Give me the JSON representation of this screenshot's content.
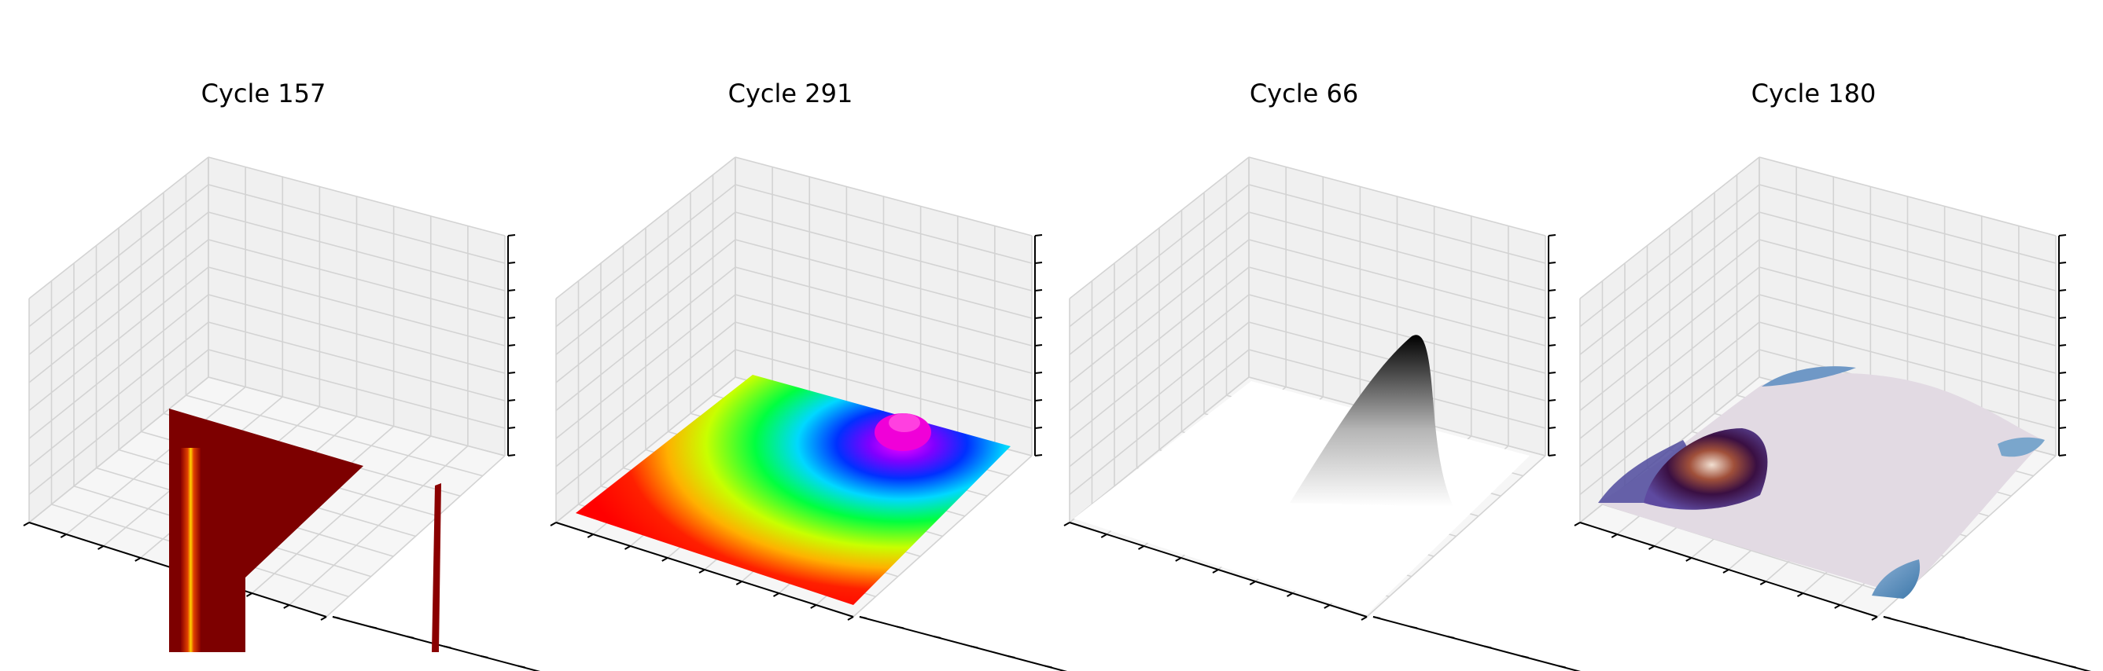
{
  "chart_data": [
    {
      "type": "surface3d",
      "title": "Cycle 157",
      "colormap": "hot",
      "colors": [
        "#7a0000",
        "#b81000",
        "#ff6a00",
        "#ffd200"
      ],
      "grid": true,
      "tick_labels": false
    },
    {
      "type": "surface3d",
      "title": "Cycle 291",
      "colormap": "hsv",
      "colors": [
        "#ff0000",
        "#ffff00",
        "#00ff00",
        "#00ffff",
        "#0000ff",
        "#ff00ff"
      ],
      "grid": true,
      "tick_labels": false
    },
    {
      "type": "surface3d",
      "title": "Cycle 66",
      "colormap": "gray_r",
      "colors": [
        "#ffffff",
        "#000000"
      ],
      "grid": true,
      "tick_labels": false
    },
    {
      "type": "surface3d",
      "title": "Cycle 180",
      "colormap": "twilight",
      "colors": [
        "#e2d9e2",
        "#5a96c0",
        "#2f1466",
        "#b05c3a"
      ],
      "grid": true,
      "tick_labels": false
    }
  ]
}
